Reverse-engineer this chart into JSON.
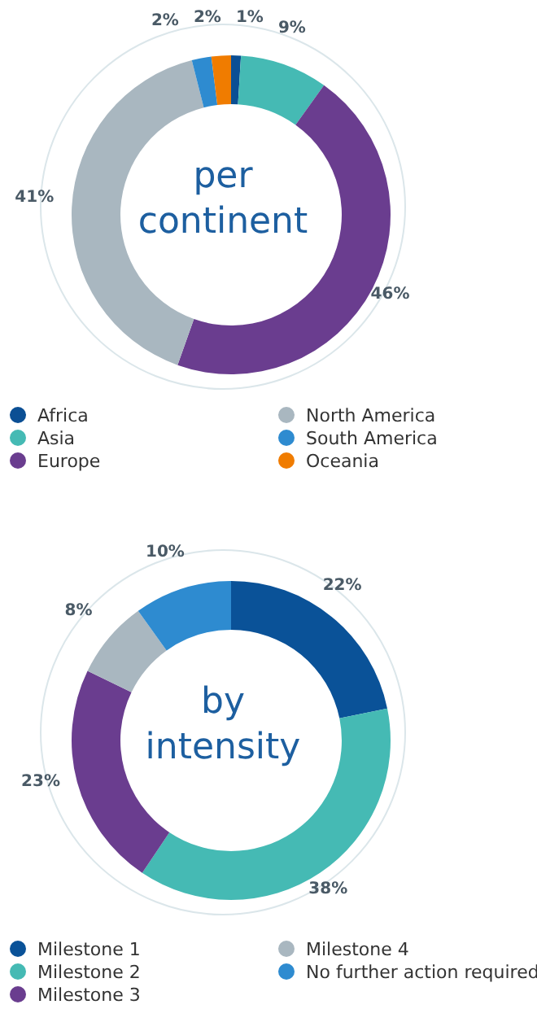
{
  "chart_data": [
    {
      "type": "donut",
      "title": "per continent",
      "categories": [
        "Africa",
        "Asia",
        "Europe",
        "North America",
        "South America",
        "Oceania"
      ],
      "values": [
        1,
        9,
        46,
        41,
        2,
        2
      ],
      "colors": [
        "#0b4f94",
        "#45bab4",
        "#6a3d8f",
        "#a9b7c0",
        "#2e8bd0",
        "#f07c00"
      ],
      "value_labels": [
        "1%",
        "9%",
        "46%",
        "41%",
        "2%",
        "2%"
      ],
      "legend": "bottom"
    },
    {
      "type": "donut",
      "title": "by intensity",
      "categories": [
        "Milestone 1",
        "Milestone 2",
        "Milestone 3",
        "Milestone 4",
        "No further action required"
      ],
      "values": [
        22,
        38,
        23,
        8,
        10
      ],
      "colors": [
        "#0a5298",
        "#45bab4",
        "#6a3d8f",
        "#a9b7c0",
        "#2e8bd0"
      ],
      "value_labels": [
        "22%",
        "38%",
        "23%",
        "8%",
        "10%"
      ],
      "legend": "bottom"
    }
  ]
}
